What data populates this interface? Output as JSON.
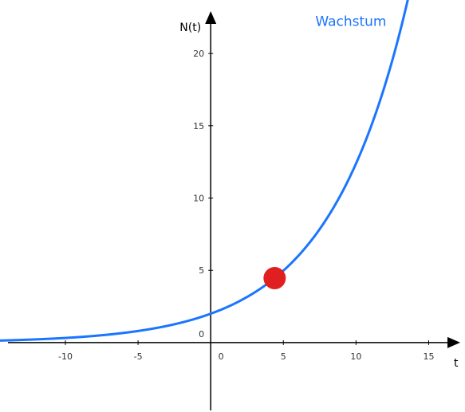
{
  "chart_data": {
    "type": "line",
    "title": "",
    "xlabel": "t",
    "ylabel": "N(t)",
    "xlim": [
      -14.5,
      17.5
    ],
    "ylim": [
      -4.8,
      23.7
    ],
    "x_ticks": [
      -10,
      -5,
      0,
      5,
      10,
      15
    ],
    "y_ticks": [
      0,
      5,
      10,
      15,
      20
    ],
    "grid": false,
    "series": [
      {
        "name": "Wachstum",
        "color": "#1a75ff",
        "function": "N(t) = 2 * 1.2^t",
        "x": [
          -14.5,
          -12,
          -10,
          -8,
          -6,
          -4,
          -2,
          0,
          2,
          4,
          6,
          8,
          10,
          12,
          13.5
        ],
        "values": [
          0.14,
          0.22,
          0.32,
          0.47,
          0.67,
          0.96,
          1.39,
          2.0,
          2.88,
          4.15,
          5.97,
          8.6,
          12.38,
          17.83,
          23.4
        ]
      }
    ],
    "point": {
      "x": 4.4,
      "y": 4.46,
      "color": "#e02020"
    }
  }
}
